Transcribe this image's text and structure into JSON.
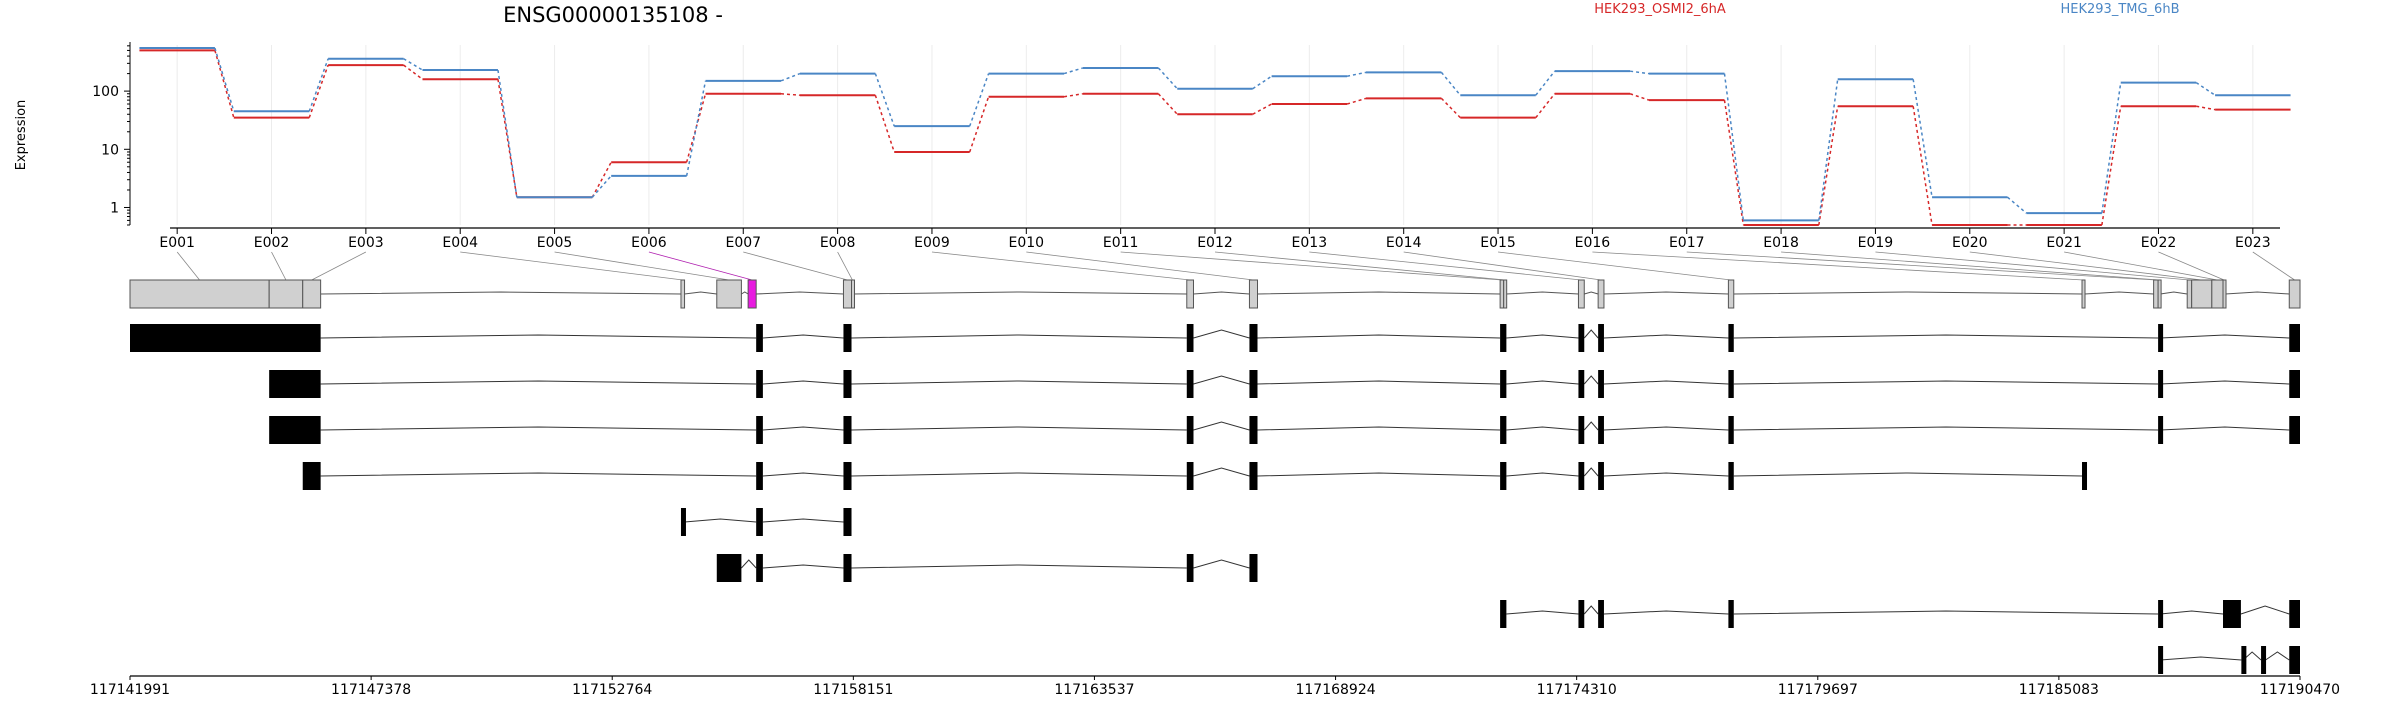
{
  "chart_data": {
    "type": "line",
    "title": "ENSG00000135108 -",
    "ylabel": "Expression",
    "yscale": "log",
    "y_ticks": [
      1,
      10,
      100
    ],
    "y_tick_labels": [
      "1",
      "10",
      "100"
    ],
    "ylim": [
      0.5,
      620
    ],
    "categories": [
      "E001",
      "E002",
      "E003",
      "E004",
      "E005",
      "E006",
      "E007",
      "E008",
      "E009",
      "E010",
      "E011",
      "E012",
      "E013",
      "E014",
      "E015",
      "E016",
      "E017",
      "E018",
      "E019",
      "E020",
      "E021",
      "E022",
      "E023"
    ],
    "series": [
      {
        "name": "HEK293_OSMI2_6hA",
        "color": "#d62728",
        "values": [
          500,
          35,
          280,
          160,
          1.5,
          6,
          90,
          85,
          9,
          80,
          90,
          40,
          60,
          75,
          35,
          90,
          70,
          0.5,
          55,
          0.5,
          0.5,
          55,
          48
        ]
      },
      {
        "name": "HEK293_TMG_6hB",
        "color": "#4a86c5",
        "values": [
          550,
          45,
          360,
          230,
          1.5,
          3.5,
          150,
          200,
          25,
          200,
          250,
          110,
          180,
          210,
          85,
          220,
          200,
          0.6,
          160,
          1.5,
          0.8,
          140,
          85
        ]
      }
    ],
    "legend": "top-right",
    "grid": true,
    "genomic_ticks": [
      "117141991",
      "117147378",
      "117152764",
      "117158151",
      "117163537",
      "117168924",
      "117174310",
      "117179697",
      "117185083",
      "117190470"
    ],
    "genomic_range": [
      117141991,
      117190470
    ],
    "exons": [
      {
        "id": "E001",
        "start": 117141991,
        "end": 117145100
      },
      {
        "id": "E002",
        "start": 117145100,
        "end": 117145850
      },
      {
        "id": "E003",
        "start": 117145850,
        "end": 117146250
      },
      {
        "id": "E004",
        "start": 117154300,
        "end": 117154380
      },
      {
        "id": "E005",
        "start": 117155100,
        "end": 117155650
      },
      {
        "id": "E006",
        "start": 117155800,
        "end": 117155980
      },
      {
        "id": "E007",
        "start": 117157930,
        "end": 117158110
      },
      {
        "id": "E008",
        "start": 117158110,
        "end": 117158150
      },
      {
        "id": "E009",
        "start": 117165600,
        "end": 117165750
      },
      {
        "id": "E010",
        "start": 117167000,
        "end": 117167180
      },
      {
        "id": "E011",
        "start": 117172600,
        "end": 117172680
      },
      {
        "id": "E012",
        "start": 117172680,
        "end": 117172740
      },
      {
        "id": "E013",
        "start": 117174350,
        "end": 117174480
      },
      {
        "id": "E014",
        "start": 117174790,
        "end": 117174920
      },
      {
        "id": "E015",
        "start": 117177700,
        "end": 117177820
      },
      {
        "id": "E016",
        "start": 117185600,
        "end": 117185660
      },
      {
        "id": "E017",
        "start": 117187200,
        "end": 117187300
      },
      {
        "id": "E018",
        "start": 117187300,
        "end": 117187350
      },
      {
        "id": "E019",
        "start": 117187950,
        "end": 117188050
      },
      {
        "id": "E020",
        "start": 117188050,
        "end": 117188500
      },
      {
        "id": "E021",
        "start": 117188500,
        "end": 117188750
      },
      {
        "id": "E022",
        "start": 117188750,
        "end": 117188800
      },
      {
        "id": "E023",
        "start": 117190230,
        "end": 117190470
      }
    ],
    "highlighted_exon": "E006",
    "transcripts": [
      {
        "exons": [
          [
            117141991,
            117146250
          ],
          [
            117155980,
            117156130
          ],
          [
            117157930,
            117158110
          ],
          [
            117165600,
            117165750
          ],
          [
            117167000,
            117167180
          ],
          [
            117172600,
            117172740
          ],
          [
            117174350,
            117174480
          ],
          [
            117174790,
            117174920
          ],
          [
            117177700,
            117177820
          ],
          [
            117187300,
            117187350
          ],
          [
            117190230,
            117190470
          ]
        ]
      },
      {
        "exons": [
          [
            117145100,
            117146250
          ],
          [
            117155980,
            117156130
          ],
          [
            117157930,
            117158110
          ],
          [
            117165600,
            117165750
          ],
          [
            117167000,
            117167180
          ],
          [
            117172600,
            117172740
          ],
          [
            117174350,
            117174480
          ],
          [
            117174790,
            117174920
          ],
          [
            117177700,
            117177820
          ],
          [
            117187300,
            117187350
          ],
          [
            117190230,
            117190470
          ]
        ]
      },
      {
        "exons": [
          [
            117145100,
            117146250
          ],
          [
            117155980,
            117156130
          ],
          [
            117157930,
            117158110
          ],
          [
            117165600,
            117165750
          ],
          [
            117167000,
            117167180
          ],
          [
            117172600,
            117172740
          ],
          [
            117174350,
            117174480
          ],
          [
            117174790,
            117174920
          ],
          [
            117177700,
            117177820
          ],
          [
            117187300,
            117187350
          ],
          [
            117190230,
            117190470
          ]
        ]
      },
      {
        "exons": [
          [
            117145850,
            117146250
          ],
          [
            117155980,
            117156130
          ],
          [
            117157930,
            117158110
          ],
          [
            117165600,
            117165750
          ],
          [
            117167000,
            117167180
          ],
          [
            117172600,
            117172740
          ],
          [
            117174350,
            117174480
          ],
          [
            117174790,
            117174920
          ],
          [
            117177700,
            117177820
          ],
          [
            117185600,
            117185660
          ]
        ]
      },
      {
        "exons": [
          [
            117154300,
            117154380
          ],
          [
            117155980,
            117156130
          ],
          [
            117157930,
            117158110
          ]
        ]
      },
      {
        "exons": [
          [
            117155100,
            117155650
          ],
          [
            117155980,
            117156130
          ],
          [
            117157930,
            117158110
          ],
          [
            117165600,
            117165750
          ],
          [
            117167000,
            117167180
          ]
        ]
      },
      {
        "exons": [
          [
            117172600,
            117172740
          ],
          [
            117174350,
            117174480
          ],
          [
            117174790,
            117174920
          ],
          [
            117177700,
            117177820
          ],
          [
            117187300,
            117187350
          ],
          [
            117188750,
            117189150
          ],
          [
            117190230,
            117190470
          ]
        ]
      },
      {
        "exons": [
          [
            117187300,
            117187350
          ],
          [
            117189160,
            117189200
          ],
          [
            117189600,
            117189700
          ],
          [
            117190230,
            117190470
          ]
        ]
      }
    ]
  }
}
